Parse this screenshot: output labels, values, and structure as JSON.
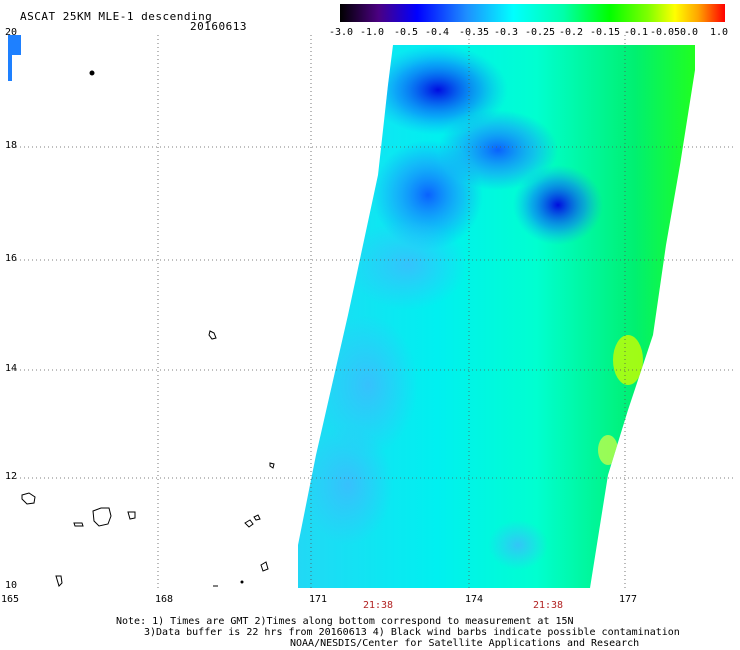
{
  "header": {
    "title": "ASCAT 25KM MLE-1 descending",
    "date": "20160613"
  },
  "colorbar": {
    "labels": [
      "-3.0",
      "-1.0",
      "-0.5",
      "-0.4",
      "-0.35",
      "-0.3",
      "-0.25",
      "-0.2",
      "-0.15",
      "-0.1",
      "-0.05",
      "0.0",
      "1.0"
    ],
    "colors": [
      "#000000",
      "#4b0082",
      "#0000ff",
      "#1e90ff",
      "#00bfff",
      "#00ffff",
      "#00ffaa",
      "#00ff00",
      "#7fff00",
      "#ffff00",
      "#ffa500",
      "#ff0000"
    ]
  },
  "map": {
    "lat_labels": [
      "20",
      "18",
      "16",
      "14",
      "12",
      "10"
    ],
    "lon_labels": [
      "165",
      "168",
      "171",
      "174",
      "177"
    ],
    "lat_range": [
      10,
      20
    ],
    "lon_range": [
      165,
      179.2
    ],
    "grid": "dotted",
    "time_labels": [
      {
        "lon": 171.95,
        "text": "21:38"
      },
      {
        "lon": 175.3,
        "text": "21:38"
      }
    ]
  },
  "notes": {
    "line1": "Note: 1) Times are GMT 2)Times along bottom correspond to measurement at 15N",
    "line2": "3)Data buffer is 22 hrs from 20160613 4) Black wind barbs indicate possible contamination",
    "line3": "NOAA/NESDIS/Center for Satellite Applications and Research"
  }
}
